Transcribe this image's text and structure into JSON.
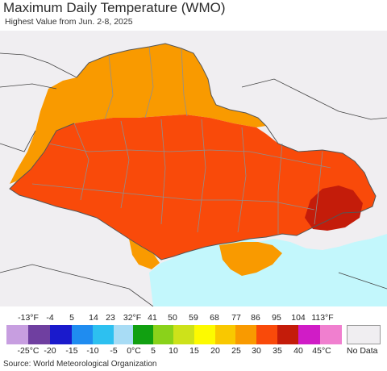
{
  "header": {
    "title": "Maximum Daily Temperature (WMO)",
    "subtitle": "Highest Value from Jun. 2-8, 2025"
  },
  "legend": {
    "fahrenheit_labels": [
      "-13°F",
      "-4",
      "5",
      "14",
      "23",
      "32°F",
      "41",
      "50",
      "59",
      "68",
      "77",
      "86",
      "95",
      "104",
      "113°F"
    ],
    "celsius_labels": [
      "-25°C",
      "-20",
      "-15",
      "-10",
      "-5",
      "0°C",
      "5",
      "10",
      "15",
      "20",
      "25",
      "30",
      "35",
      "40",
      "45°C"
    ],
    "colors": [
      "#c79ee0",
      "#6f3fa0",
      "#1a1acc",
      "#1f8cf0",
      "#2dc0f0",
      "#a8dcf5",
      "#11a011",
      "#8ad21a",
      "#cde21a",
      "#fdfa00",
      "#f9c800",
      "#f99a00",
      "#f94a0a",
      "#c41c0a",
      "#d01cc6",
      "#f07fcf"
    ],
    "no_data_label": "No Data",
    "no_data_color": "#f0eef1"
  },
  "map": {
    "sea_color": "#c3f7fc",
    "land_outside_color": "#f0eef1",
    "zone_colors": {
      "range_25_30": "#f99a00",
      "range_30_35": "#f94a0a",
      "range_35_40": "#c41c0a"
    }
  },
  "footer": {
    "source": "Source: World Meteorological Organization"
  }
}
